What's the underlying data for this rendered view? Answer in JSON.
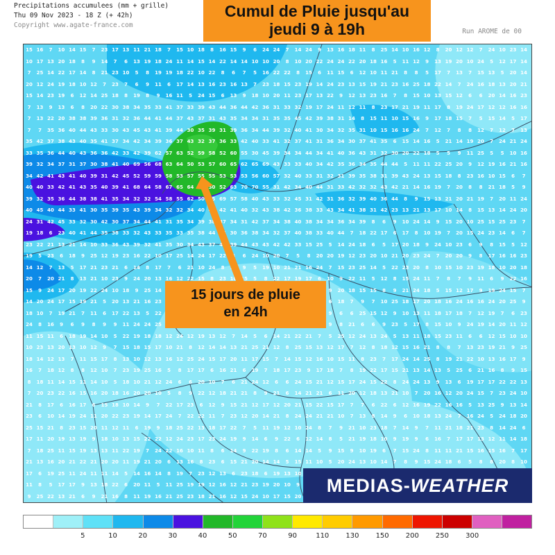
{
  "header": {
    "line1": "Precipitations accumulees (mm + grille)",
    "line2": "Thu 09 Nov 2023 - 18 Z (+ 42h)",
    "line3": "Copyright www.agate-france.com",
    "run": "Run AROME de 00"
  },
  "title": {
    "line1": "Cumul de Pluie jusqu'au",
    "line2": "jeudi 9 à 19h"
  },
  "callout": {
    "line1": "15 jours de pluie",
    "line2": "en 24h"
  },
  "logo": {
    "bold": "MEDIAS-",
    "italic": "WEATHER"
  },
  "legend": {
    "colors": [
      "#ffffff",
      "#9ff0f8",
      "#5fe1f7",
      "#1fb8ef",
      "#0d8ae8",
      "#4a12e0",
      "#22b829",
      "#22d439",
      "#8fe21a",
      "#ffe900",
      "#ffcc00",
      "#ff9a00",
      "#ff6a00",
      "#ee1500",
      "#cc0000",
      "#e060c0",
      "#c020a0"
    ],
    "labels": [
      "5",
      "10",
      "20",
      "30",
      "40",
      "50",
      "70",
      "90",
      "110",
      "130",
      "150",
      "200",
      "250",
      "300"
    ]
  },
  "accents": {
    "orange": "#f7941d",
    "navy": "#1b2a6e"
  }
}
